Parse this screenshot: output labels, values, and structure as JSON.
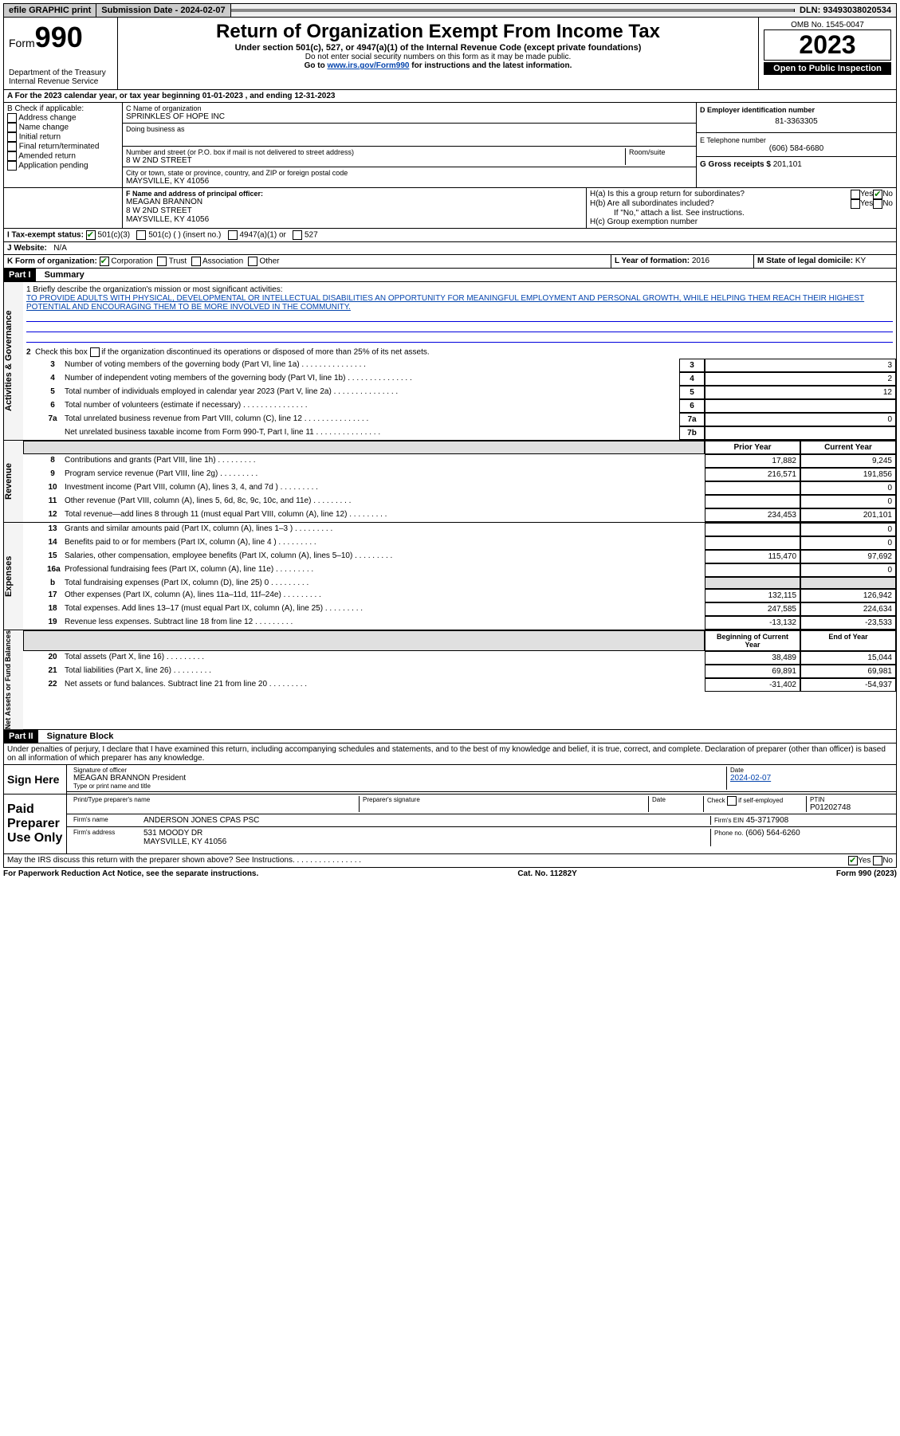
{
  "topbar": {
    "efile": "efile GRAPHIC print",
    "subdate_lbl": "Submission Date - ",
    "subdate": "2024-02-07",
    "dln_lbl": "DLN: ",
    "dln": "93493038020534"
  },
  "header": {
    "form": "Form",
    "num": "990",
    "dept": "Department of the Treasury\nInternal Revenue Service",
    "title": "Return of Organization Exempt From Income Tax",
    "sub1": "Under section 501(c), 527, or 4947(a)(1) of the Internal Revenue Code (except private foundations)",
    "sub2": "Do not enter social security numbers on this form as it may be made public.",
    "sub3_pre": "Go to ",
    "sub3_link": "www.irs.gov/Form990",
    "sub3_post": " for instructions and the latest information.",
    "omb": "OMB No. 1545-0047",
    "year": "2023",
    "open": "Open to Public Inspection"
  },
  "a": {
    "line": "A For the 2023 calendar year, or tax year beginning 01-01-2023   , and ending 12-31-2023"
  },
  "b": {
    "hdr": "B Check if applicable:",
    "items": [
      "Address change",
      "Name change",
      "Initial return",
      "Final return/terminated",
      "Amended return",
      "Application pending"
    ]
  },
  "c": {
    "name_lbl": "C Name of organization",
    "name": "SPRINKLES OF HOPE INC",
    "dba_lbl": "Doing business as",
    "addr_lbl": "Number and street (or P.O. box if mail is not delivered to street address)",
    "room_lbl": "Room/suite",
    "addr": "8 W 2ND STREET",
    "city_lbl": "City or town, state or province, country, and ZIP or foreign postal code",
    "city": "MAYSVILLE, KY  41056"
  },
  "d": {
    "lbl": "D Employer identification number",
    "val": "81-3363305"
  },
  "e": {
    "lbl": "E Telephone number",
    "val": "(606) 584-6680"
  },
  "g": {
    "lbl": "G Gross receipts $",
    "val": "201,101"
  },
  "f": {
    "lbl": "F Name and address of principal officer:",
    "name": "MEAGAN BRANNON",
    "addr1": "8 W 2ND STREET",
    "addr2": "MAYSVILLE, KY  41056"
  },
  "h": {
    "a_lbl": "H(a)  Is this a group return for subordinates?",
    "b_lbl": "H(b)  Are all subordinates included?",
    "b_note": "If \"No,\" attach a list. See instructions.",
    "c_lbl": "H(c)  Group exemption number",
    "yes": "Yes",
    "no": "No"
  },
  "i": {
    "lbl": "I    Tax-exempt status:",
    "o1": "501(c)(3)",
    "o2": "501(c) (  ) (insert no.)",
    "o3": "4947(a)(1) or",
    "o4": "527"
  },
  "j": {
    "lbl": "J    Website:",
    "val": "N/A"
  },
  "k": {
    "lbl": "K Form of organization:",
    "o1": "Corporation",
    "o2": "Trust",
    "o3": "Association",
    "o4": "Other"
  },
  "l": {
    "lbl": "L Year of formation: ",
    "val": "2016"
  },
  "m": {
    "lbl": "M State of legal domicile: ",
    "val": "KY"
  },
  "part1": {
    "hdr": "Part I",
    "title": "Summary"
  },
  "mission": {
    "lbl": "1  Briefly describe the organization's mission or most significant activities:",
    "text": "TO PROVIDE ADULTS WITH PHYSICAL, DEVELOPMENTAL OR INTELLECTUAL DISABILITIES AN OPPORTUNITY FOR MEANINGFUL EMPLOYMENT AND PERSONAL GROWTH, WHILE HELPING THEM REACH THEIR HIGHEST POTENTIAL AND ENCOURAGING THEM TO BE MORE INVOLVED IN THE COMMUNITY."
  },
  "line2": "Check this box     if the organization discontinued its operations or disposed of more than 25% of its net assets.",
  "gov_rows": [
    {
      "n": "3",
      "t": "Number of voting members of the governing body (Part VI, line 1a)",
      "c": "3",
      "v": "3"
    },
    {
      "n": "4",
      "t": "Number of independent voting members of the governing body (Part VI, line 1b)",
      "c": "4",
      "v": "2"
    },
    {
      "n": "5",
      "t": "Total number of individuals employed in calendar year 2023 (Part V, line 2a)",
      "c": "5",
      "v": "12"
    },
    {
      "n": "6",
      "t": "Total number of volunteers (estimate if necessary)",
      "c": "6",
      "v": ""
    },
    {
      "n": "7a",
      "t": "Total unrelated business revenue from Part VIII, column (C), line 12",
      "c": "7a",
      "v": "0"
    },
    {
      "n": "",
      "t": "Net unrelated business taxable income from Form 990-T, Part I, line 11",
      "c": "7b",
      "v": ""
    }
  ],
  "col_hdrs": {
    "prior": "Prior Year",
    "current": "Current Year",
    "boy": "Beginning of Current Year",
    "eoy": "End of Year"
  },
  "revenue_rows": [
    {
      "n": "8",
      "t": "Contributions and grants (Part VIII, line 1h)",
      "p": "17,882",
      "c": "9,245"
    },
    {
      "n": "9",
      "t": "Program service revenue (Part VIII, line 2g)",
      "p": "216,571",
      "c": "191,856"
    },
    {
      "n": "10",
      "t": "Investment income (Part VIII, column (A), lines 3, 4, and 7d )",
      "p": "",
      "c": "0"
    },
    {
      "n": "11",
      "t": "Other revenue (Part VIII, column (A), lines 5, 6d, 8c, 9c, 10c, and 11e)",
      "p": "",
      "c": "0"
    },
    {
      "n": "12",
      "t": "Total revenue—add lines 8 through 11 (must equal Part VIII, column (A), line 12)",
      "p": "234,453",
      "c": "201,101"
    }
  ],
  "expense_rows": [
    {
      "n": "13",
      "t": "Grants and similar amounts paid (Part IX, column (A), lines 1–3 )",
      "p": "",
      "c": "0"
    },
    {
      "n": "14",
      "t": "Benefits paid to or for members (Part IX, column (A), line 4 )",
      "p": "",
      "c": "0"
    },
    {
      "n": "15",
      "t": "Salaries, other compensation, employee benefits (Part IX, column (A), lines 5–10)",
      "p": "115,470",
      "c": "97,692"
    },
    {
      "n": "16a",
      "t": "Professional fundraising fees (Part IX, column (A), line 11e)",
      "p": "",
      "c": "0"
    },
    {
      "n": "b",
      "t": "Total fundraising expenses (Part IX, column (D), line 25) 0",
      "p": "shade",
      "c": "shade"
    },
    {
      "n": "17",
      "t": "Other expenses (Part IX, column (A), lines 11a–11d, 11f–24e)",
      "p": "132,115",
      "c": "126,942"
    },
    {
      "n": "18",
      "t": "Total expenses. Add lines 13–17 (must equal Part IX, column (A), line 25)",
      "p": "247,585",
      "c": "224,634"
    },
    {
      "n": "19",
      "t": "Revenue less expenses. Subtract line 18 from line 12",
      "p": "-13,132",
      "c": "-23,533"
    }
  ],
  "net_rows": [
    {
      "n": "20",
      "t": "Total assets (Part X, line 16)",
      "p": "38,489",
      "c": "15,044"
    },
    {
      "n": "21",
      "t": "Total liabilities (Part X, line 26)",
      "p": "69,891",
      "c": "69,981"
    },
    {
      "n": "22",
      "t": "Net assets or fund balances. Subtract line 21 from line 20",
      "p": "-31,402",
      "c": "-54,937"
    }
  ],
  "vlabels": {
    "gov": "Activities & Governance",
    "rev": "Revenue",
    "exp": "Expenses",
    "net": "Net Assets or Fund Balances"
  },
  "part2": {
    "hdr": "Part II",
    "title": "Signature Block"
  },
  "perjury": "Under penalties of perjury, I declare that I have examined this return, including accompanying schedules and statements, and to the best of my knowledge and belief, it is true, correct, and complete. Declaration of preparer (other than officer) is based on all information of which preparer has any knowledge.",
  "sign": {
    "here": "Sign Here",
    "sig_lbl": "Signature of officer",
    "name": "MEAGAN BRANNON President",
    "name_lbl": "Type or print name and title",
    "date_lbl": "Date",
    "date": "2024-02-07"
  },
  "paid": {
    "hdr": "Paid Preparer Use Only",
    "pname_lbl": "Print/Type preparer's name",
    "psig_lbl": "Preparer's signature",
    "pdate_lbl": "Date",
    "check_lbl": "Check        if self-employed",
    "ptin_lbl": "PTIN",
    "ptin": "P01202748",
    "firm_lbl": "Firm's name",
    "firm": "ANDERSON JONES CPAS PSC",
    "fein_lbl": "Firm's EIN",
    "fein": "45-3717908",
    "faddr_lbl": "Firm's address",
    "faddr1": "531 MOODY DR",
    "faddr2": "MAYSVILLE, KY  41056",
    "phone_lbl": "Phone no.",
    "phone": "(606) 564-6260"
  },
  "discuss": "May the IRS discuss this return with the preparer shown above? See Instructions.",
  "footer": {
    "l": "For Paperwork Reduction Act Notice, see the separate instructions.",
    "c": "Cat. No. 11282Y",
    "r": "Form 990 (2023)"
  }
}
